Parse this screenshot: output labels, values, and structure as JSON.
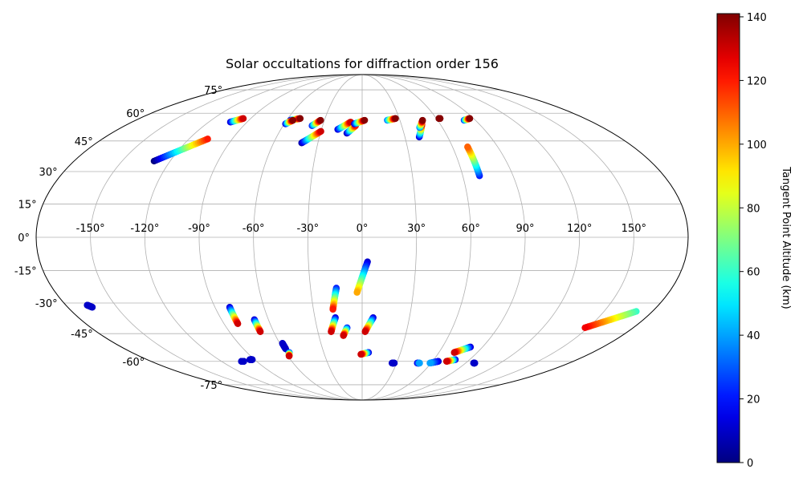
{
  "chart_data": {
    "type": "scatter",
    "projection": "mollweide",
    "title": "Solar occultations for diffraction order 156",
    "lon_ticks": [
      "-150°",
      "-120°",
      "-90°",
      "-60°",
      "-30°",
      "0°",
      "30°",
      "60°",
      "90°",
      "120°",
      "150°"
    ],
    "lat_ticks": [
      "75°",
      "60°",
      "45°",
      "30°",
      "15°",
      "0°",
      "-15°",
      "-30°",
      "-45°",
      "-60°",
      "-75°"
    ],
    "grid": true,
    "colorbar": {
      "label": "Tangent Point Altitude (km)",
      "colormap": "jet",
      "range": [
        0,
        141
      ],
      "ticks": [
        "0",
        "20",
        "40",
        "60",
        "80",
        "100",
        "120",
        "140"
      ]
    },
    "tracks": [
      {
        "lon_start": -130,
        "lat_start": 35,
        "lon_end": -107,
        "lat_end": 46,
        "alt_start": 0,
        "alt_end": 120
      },
      {
        "lon_start": -103,
        "lat_start": 55,
        "lon_end": -96,
        "lat_end": 57,
        "alt_start": 10,
        "alt_end": 130
      },
      {
        "lon_start": -57,
        "lat_start": 56,
        "lon_end": -50,
        "lat_end": 57,
        "alt_start": 10,
        "alt_end": 140
      },
      {
        "lon_start": -59,
        "lat_start": 54,
        "lon_end": -55,
        "lat_end": 56,
        "alt_start": 10,
        "alt_end": 140
      },
      {
        "lon_start": -41,
        "lat_start": 44,
        "lon_end": -30,
        "lat_end": 50,
        "alt_start": 5,
        "alt_end": 130
      },
      {
        "lon_start": -38,
        "lat_start": 53,
        "lon_end": -33,
        "lat_end": 56,
        "alt_start": 20,
        "alt_end": 140
      },
      {
        "lon_start": -18,
        "lat_start": 51,
        "lon_end": -9,
        "lat_end": 55,
        "alt_start": 10,
        "alt_end": 130
      },
      {
        "lon_start": -11,
        "lat_start": 49,
        "lon_end": -5,
        "lat_end": 53,
        "alt_start": 5,
        "alt_end": 120
      },
      {
        "lon_start": -6,
        "lat_start": 54,
        "lon_end": 2,
        "lat_end": 56,
        "alt_start": 10,
        "alt_end": 140
      },
      {
        "lon_start": 20,
        "lat_start": 56,
        "lon_end": 27,
        "lat_end": 57,
        "alt_start": 30,
        "alt_end": 140
      },
      {
        "lon_start": 40,
        "lat_start": 47,
        "lon_end": 46,
        "lat_end": 54,
        "alt_start": 10,
        "alt_end": 130
      },
      {
        "lon_start": 43,
        "lat_start": 52,
        "lon_end": 48,
        "lat_end": 56,
        "alt_start": 30,
        "alt_end": 140
      },
      {
        "lon_start": 62,
        "lat_start": 57,
        "lon_end": 63,
        "lat_end": 57,
        "alt_start": 140,
        "alt_end": 140
      },
      {
        "lon_start": 81,
        "lat_start": 56,
        "lon_end": 87,
        "lat_end": 57,
        "alt_start": 20,
        "alt_end": 140
      },
      {
        "lon_start": 70,
        "lat_start": 28,
        "lon_end": 70,
        "lat_end": 42,
        "alt_start": 20,
        "alt_end": 110
      },
      {
        "lon_start": 3,
        "lat_start": -11,
        "lon_end": -3,
        "lat_end": -25,
        "alt_start": 10,
        "alt_end": 100
      },
      {
        "lon_start": -15,
        "lat_start": -23,
        "lon_end": -18,
        "lat_end": -33,
        "alt_start": 20,
        "alt_end": 120
      },
      {
        "lon_start": -17,
        "lat_start": -37,
        "lon_end": -21,
        "lat_end": -44,
        "alt_start": 10,
        "alt_end": 130
      },
      {
        "lon_start": -10,
        "lat_start": -42,
        "lon_end": -13,
        "lat_end": -46,
        "alt_start": 20,
        "alt_end": 130
      },
      {
        "lon_start": 7,
        "lat_start": -37,
        "lon_end": 2,
        "lat_end": -44,
        "alt_start": 10,
        "alt_end": 130
      },
      {
        "lon_start": 5,
        "lat_start": -55,
        "lon_end": -1,
        "lat_end": -56,
        "alt_start": 10,
        "alt_end": 130
      },
      {
        "lon_start": -81,
        "lat_start": -32,
        "lon_end": -81,
        "lat_end": -40,
        "alt_start": 10,
        "alt_end": 130
      },
      {
        "lon_start": -69,
        "lat_start": -38,
        "lon_end": -69,
        "lat_end": -44,
        "alt_start": 10,
        "alt_end": 130
      },
      {
        "lon_start": -58,
        "lat_start": -50,
        "lon_end": -58,
        "lat_end": -53,
        "alt_start": 10,
        "alt_end": 10
      },
      {
        "lon_start": -57,
        "lat_start": -55,
        "lon_end": -59,
        "lat_end": -57,
        "alt_start": 20,
        "alt_end": 130
      },
      {
        "lon_start": -103,
        "lat_start": -60,
        "lon_end": -101,
        "lat_end": -60,
        "alt_start": 10,
        "alt_end": 10
      },
      {
        "lon_start": -94,
        "lat_start": -59,
        "lon_end": -92,
        "lat_end": -59,
        "alt_start": 10,
        "alt_end": 10
      },
      {
        "lon_start": 81,
        "lat_start": -52,
        "lon_end": 72,
        "lat_end": -55,
        "alt_start": 10,
        "alt_end": 130
      },
      {
        "lon_start": 78,
        "lat_start": -59,
        "lon_end": 72,
        "lat_end": -60,
        "alt_start": 10,
        "alt_end": 130
      },
      {
        "lon_start": 26,
        "lat_start": -61,
        "lon_end": 28,
        "lat_end": -61,
        "alt_start": 10,
        "alt_end": 10
      },
      {
        "lon_start": 48,
        "lat_start": -61,
        "lon_end": 50,
        "lat_end": -61,
        "alt_start": 10,
        "alt_end": 40
      },
      {
        "lon_start": 65,
        "lat_start": -60,
        "lon_end": 59,
        "lat_end": -61,
        "alt_start": 10,
        "alt_end": 40
      },
      {
        "lon_start": 97,
        "lat_start": -61,
        "lon_end": 98,
        "lat_end": -61,
        "alt_start": 10,
        "alt_end": 10
      },
      {
        "lon_start": -167,
        "lat_start": -31,
        "lon_end": -165,
        "lat_end": -32,
        "alt_start": 10,
        "alt_end": 10
      },
      {
        "lon_start": 170,
        "lat_start": -34,
        "lon_end": 148,
        "lat_end": -42,
        "alt_start": 60,
        "alt_end": 125
      }
    ]
  }
}
